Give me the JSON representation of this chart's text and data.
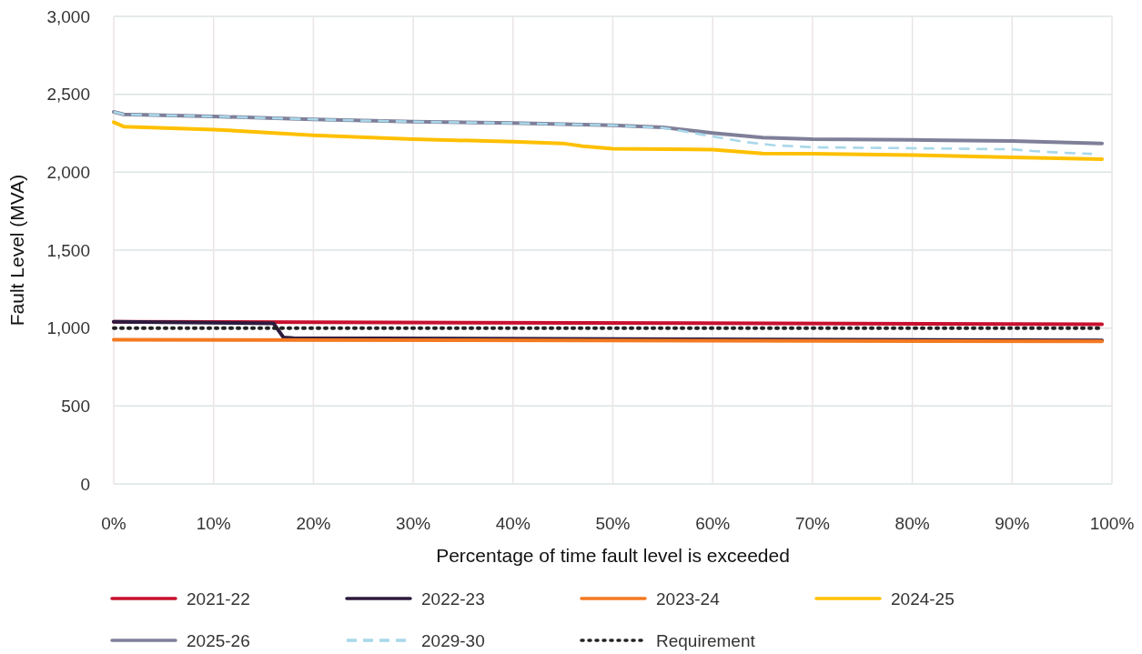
{
  "chart_data": {
    "type": "line",
    "xlabel": "Percentage of time fault level is exceeded",
    "ylabel": "Fault Level (MVA)",
    "xlim": [
      0,
      100
    ],
    "xticks": [
      {
        "value": 0,
        "label": "0%"
      },
      {
        "value": 10,
        "label": "10%"
      },
      {
        "value": 20,
        "label": "20%"
      },
      {
        "value": 30,
        "label": "30%"
      },
      {
        "value": 40,
        "label": "40%"
      },
      {
        "value": 50,
        "label": "50%"
      },
      {
        "value": 60,
        "label": "60%"
      },
      {
        "value": 70,
        "label": "70%"
      },
      {
        "value": 80,
        "label": "80%"
      },
      {
        "value": 90,
        "label": "90%"
      },
      {
        "value": 100,
        "label": "100%"
      }
    ],
    "ylim": [
      0,
      3000
    ],
    "yticks": [
      0,
      {
        "value": 500,
        "label": "500"
      },
      {
        "value": 1000,
        "label": "1,000"
      },
      {
        "value": 1500,
        "label": "1,500"
      },
      {
        "value": 2000,
        "label": "2,000"
      },
      {
        "value": 2500,
        "label": "2,500"
      },
      {
        "value": 3000,
        "label": "3,000"
      }
    ],
    "grid": true,
    "legend": "bottom",
    "series": [
      {
        "name": "2021-22",
        "color": "#c8102e",
        "line_style": "solid",
        "x": [
          0,
          99
        ],
        "values": [
          1040,
          1025
        ]
      },
      {
        "name": "2022-23",
        "color": "#2d1a3e",
        "line_style": "solid",
        "x": [
          0,
          16,
          17,
          18,
          99
        ],
        "values": [
          1040,
          1030,
          940,
          935,
          920
        ]
      },
      {
        "name": "2023-24",
        "color": "#f47920",
        "line_style": "solid",
        "x": [
          0,
          99
        ],
        "values": [
          925,
          915
        ]
      },
      {
        "name": "2024-25",
        "color": "#ffc000",
        "line_style": "solid",
        "x": [
          0,
          1,
          10,
          20,
          30,
          40,
          45,
          47,
          50,
          60,
          65,
          70,
          80,
          90,
          99
        ],
        "values": [
          2321,
          2293,
          2274,
          2237,
          2212,
          2196,
          2185,
          2167,
          2151,
          2145,
          2120,
          2118,
          2110,
          2096,
          2084
        ]
      },
      {
        "name": "2025-26",
        "color": "#7f7f99",
        "line_style": "solid",
        "x": [
          0,
          1,
          10,
          20,
          30,
          40,
          50,
          55,
          60,
          65,
          70,
          80,
          90,
          99
        ],
        "values": [
          2387,
          2371,
          2358,
          2339,
          2324,
          2315,
          2301,
          2288,
          2252,
          2222,
          2212,
          2207,
          2200,
          2185
        ]
      },
      {
        "name": "2029-30",
        "color": "#a8d8ea",
        "line_style": "dashed",
        "x": [
          0,
          1,
          10,
          20,
          30,
          40,
          50,
          55,
          60,
          63,
          66,
          70,
          80,
          90,
          92,
          95,
          98
        ],
        "values": [
          2387,
          2371,
          2358,
          2339,
          2324,
          2315,
          2301,
          2285,
          2230,
          2196,
          2174,
          2160,
          2154,
          2147,
          2136,
          2125,
          2118
        ]
      },
      {
        "name": "Requirement",
        "color": "#222222",
        "line_style": "dotted",
        "x": [
          0,
          99
        ],
        "values": [
          1000,
          1000
        ]
      }
    ]
  }
}
